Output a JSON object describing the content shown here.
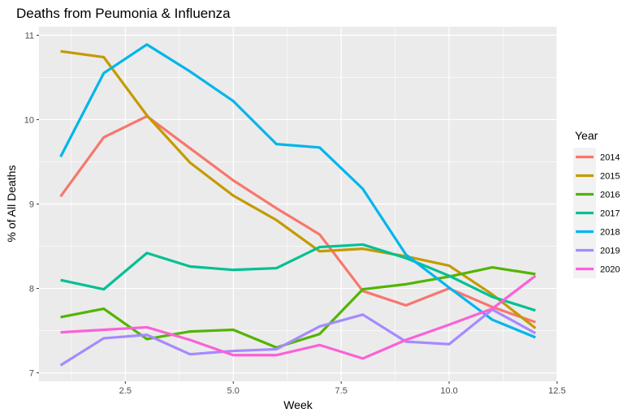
{
  "chart_data": {
    "type": "line",
    "title": "Deaths from Peumonia & Influenza",
    "xlabel": "Week",
    "ylabel": "% of All Deaths",
    "xlim": [
      0.5,
      12.5
    ],
    "ylim": [
      6.9,
      11.1
    ],
    "xticks": [
      2.5,
      5.0,
      7.5,
      10.0,
      12.5
    ],
    "xtick_labels": [
      "2.5",
      "5.0",
      "7.5",
      "10.0",
      "12.5"
    ],
    "yticks": [
      7,
      8,
      9,
      10,
      11
    ],
    "ytick_labels": [
      "7",
      "8",
      "9",
      "10",
      "11"
    ],
    "grid": true,
    "legend": {
      "title": "Year",
      "position": "right"
    },
    "x": [
      1,
      2,
      3,
      4,
      5,
      6,
      7,
      8,
      9,
      10,
      11,
      12
    ],
    "series": [
      {
        "name": "2014",
        "color": "#F8766D",
        "values": [
          9.09,
          9.79,
          10.04,
          9.66,
          9.28,
          8.95,
          8.64,
          7.97,
          7.8,
          8.0,
          7.78,
          7.6
        ]
      },
      {
        "name": "2015",
        "color": "#C49A00",
        "values": [
          10.81,
          10.74,
          10.05,
          9.49,
          9.1,
          8.81,
          8.44,
          8.47,
          8.38,
          8.27,
          7.93,
          7.53
        ]
      },
      {
        "name": "2016",
        "color": "#53B400",
        "values": [
          7.66,
          7.76,
          7.4,
          7.49,
          7.51,
          7.3,
          7.46,
          7.99,
          8.05,
          8.14,
          8.25,
          8.17
        ]
      },
      {
        "name": "2017",
        "color": "#00C094",
        "values": [
          8.1,
          7.99,
          8.42,
          8.26,
          8.22,
          8.24,
          8.49,
          8.52,
          8.36,
          8.15,
          7.9,
          7.74
        ]
      },
      {
        "name": "2018",
        "color": "#00B6EB",
        "values": [
          9.56,
          10.55,
          10.89,
          10.57,
          10.22,
          9.71,
          9.67,
          9.18,
          8.4,
          8.01,
          7.63,
          7.42
        ]
      },
      {
        "name": "2019",
        "color": "#A58AFF",
        "values": [
          7.09,
          7.41,
          7.45,
          7.22,
          7.26,
          7.28,
          7.55,
          7.69,
          7.37,
          7.34,
          7.75,
          7.47
        ]
      },
      {
        "name": "2020",
        "color": "#FB61D7",
        "values": [
          7.48,
          7.51,
          7.54,
          7.39,
          7.21,
          7.21,
          7.33,
          7.17,
          7.39,
          7.57,
          7.76,
          8.15
        ]
      }
    ]
  }
}
